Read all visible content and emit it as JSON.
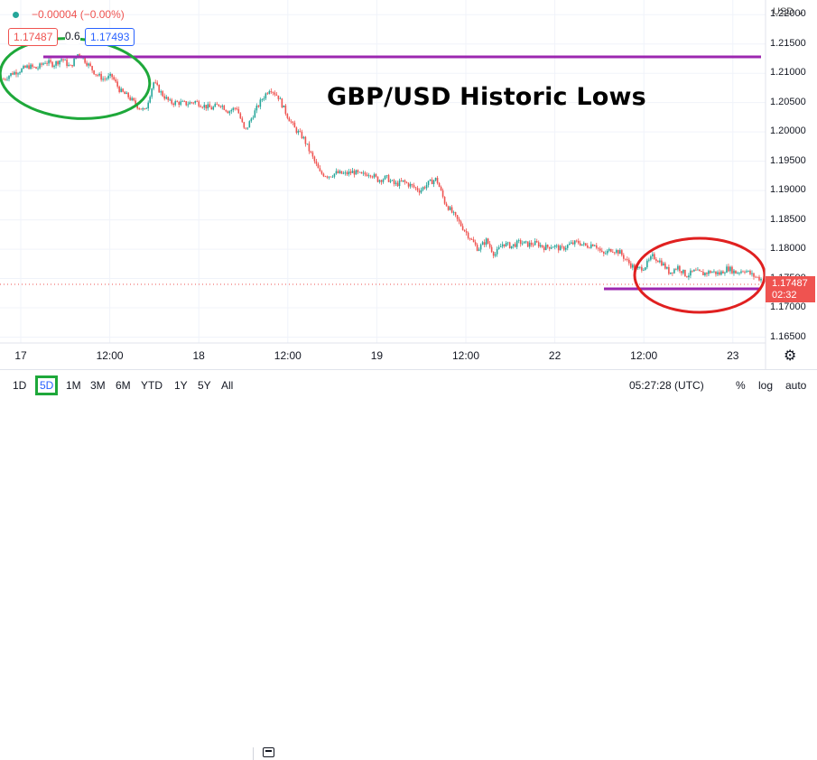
{
  "legend": {
    "change": "−0.00004 (−0.00%)",
    "bid": "1.17487",
    "spread": "0.6",
    "ask": "1.17493"
  },
  "annotation_title": "GBP/USD Historic Lows",
  "currency": "USD",
  "last_price": {
    "value": "1.17487",
    "countdown": "02:32",
    "color": "#ef5350"
  },
  "toolbar": {
    "ranges": [
      "1D",
      "5D",
      "1M",
      "3M",
      "6M",
      "YTD",
      "1Y",
      "5Y",
      "All"
    ],
    "selected": "5D",
    "time": "05:27:28 (UTC)",
    "percent": "%",
    "log": "log",
    "auto": "auto"
  },
  "colors": {
    "up": "#26a69a",
    "down": "#ef5350",
    "support_line": "#9c27b0",
    "green_circle": "#1ea83a",
    "red_circle": "#e02020"
  },
  "chart_data": {
    "type": "line",
    "title": "GBP/USD Historic Lows",
    "y_ticks": [
      "1.22000",
      "1.21500",
      "1.21000",
      "1.20500",
      "1.20000",
      "1.19500",
      "1.19000",
      "1.18500",
      "1.18000",
      "1.17500",
      "1.17000",
      "1.16500"
    ],
    "x_ticks": [
      "17",
      "12:00",
      "18",
      "12:00",
      "19",
      "12:00",
      "22",
      "12:00",
      "23"
    ],
    "ylim": [
      1.164,
      1.2225
    ],
    "series": [
      {
        "values": [
          1.209,
          1.21,
          1.2105,
          1.2112,
          1.2108,
          1.212,
          1.2115,
          1.2125,
          1.211,
          1.2135,
          1.2118,
          1.21,
          1.209,
          1.2095,
          1.207,
          1.206,
          1.2045,
          1.2035,
          1.2085,
          1.2065,
          1.205,
          1.205,
          1.2048,
          1.2052,
          1.2045,
          1.204,
          1.2048,
          1.2035,
          1.2042,
          1.2,
          1.203,
          1.2055,
          1.2075,
          1.206,
          1.203,
          1.2005,
          1.199,
          1.196,
          1.193,
          1.1925,
          1.193,
          1.1928,
          1.1932,
          1.1926,
          1.193,
          1.1918,
          1.1922,
          1.191,
          1.1915,
          1.1908,
          1.19,
          1.1912,
          1.192,
          1.188,
          1.186,
          1.184,
          1.182,
          1.18,
          1.1815,
          1.179,
          1.181,
          1.1805,
          1.1812,
          1.1808,
          1.181,
          1.1803,
          1.1806,
          1.18,
          1.1808,
          1.1812,
          1.1805,
          1.181,
          1.179,
          1.18,
          1.1795,
          1.1778,
          1.1765,
          1.177,
          1.1788,
          1.1778,
          1.176,
          1.177,
          1.1755,
          1.1762,
          1.1758,
          1.1762,
          1.1758,
          1.1768,
          1.176,
          1.1765,
          1.1755,
          1.1749
        ]
      }
    ],
    "horizontal_lines": [
      1.2143,
      1.174
    ]
  }
}
